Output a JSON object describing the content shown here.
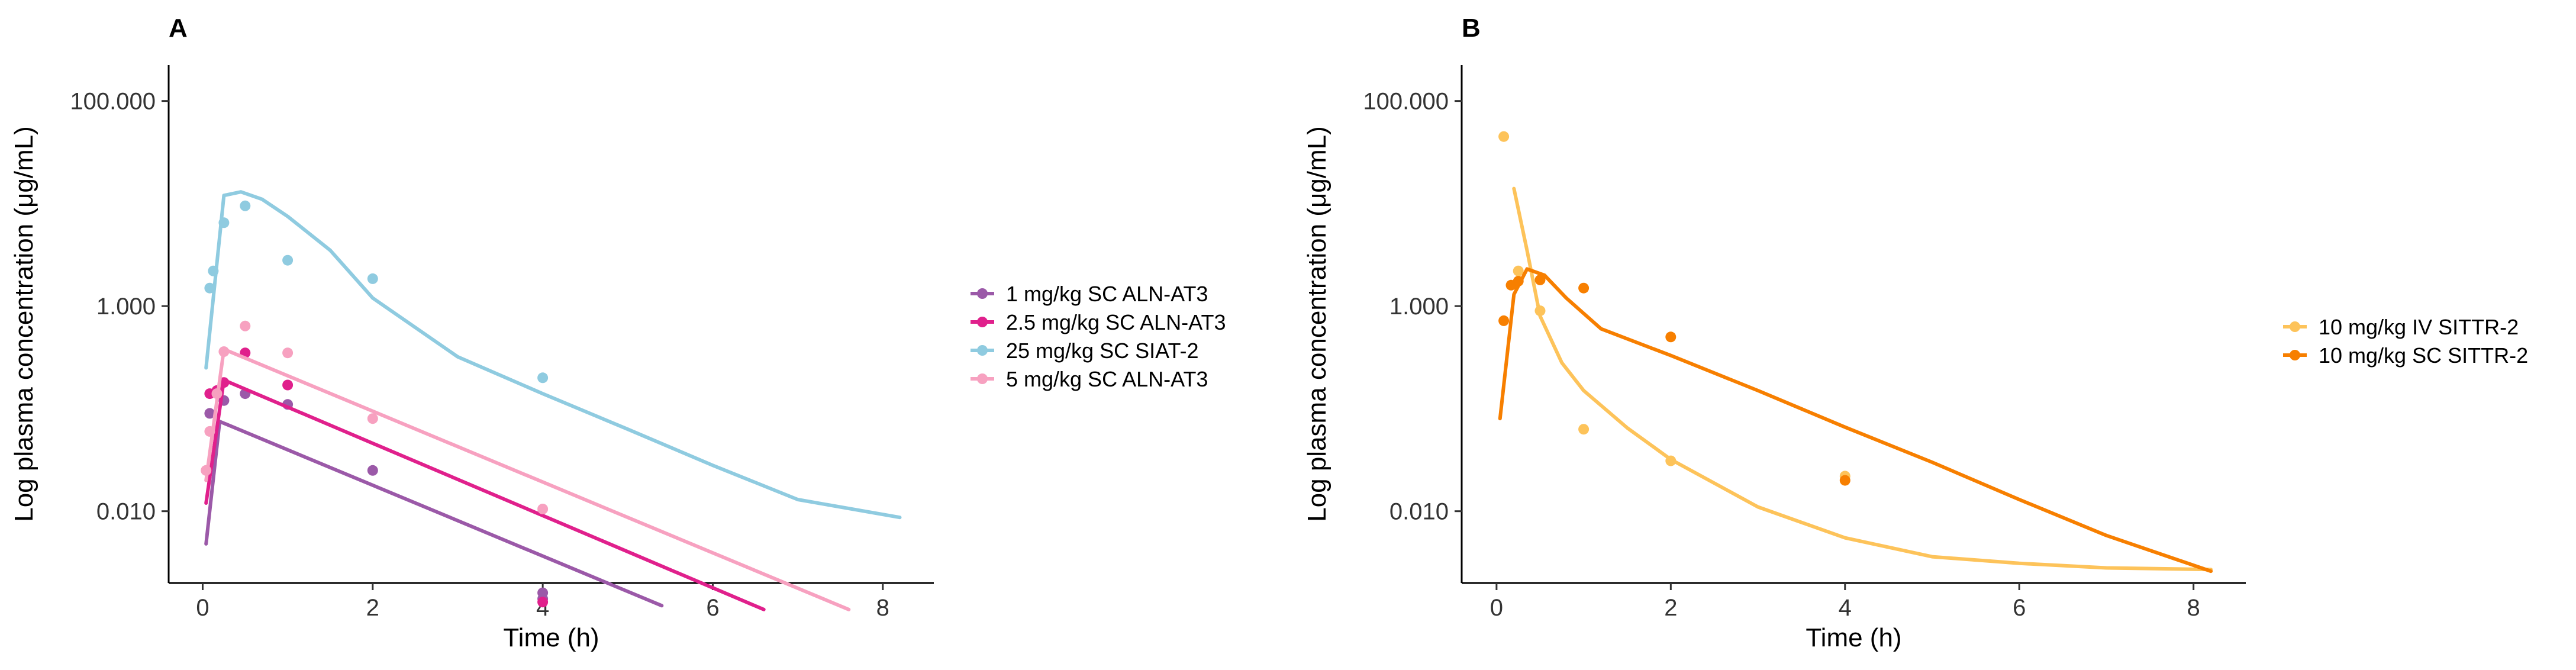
{
  "chart_data": [
    {
      "panel": "A",
      "type": "scatter",
      "xlabel": "Time (h)",
      "ylabel": "Log plasma concentration (μg/mL)",
      "xlim": [
        -0.4,
        8.6
      ],
      "ylim_log10": [
        -2.7,
        2.35
      ],
      "x_ticks": [
        0,
        2,
        4,
        6,
        8
      ],
      "y_ticks": [
        {
          "value": 0.01,
          "label": "0.010"
        },
        {
          "value": 1,
          "label": "1.000"
        },
        {
          "value": 100,
          "label": "100.000"
        }
      ],
      "grid": false,
      "legend_position": "right",
      "series": [
        {
          "name": "1 mg/kg SC ALN-AT3",
          "color": "#9b59a8",
          "points": [
            [
              0.083,
              0.09
            ],
            [
              0.25,
              0.12
            ],
            [
              0.5,
              0.14
            ],
            [
              1,
              0.11
            ],
            [
              2,
              0.025
            ],
            [
              4,
              0.0016
            ],
            [
              4,
              0.0014
            ]
          ],
          "fit": [
            [
              0.04,
              0.0048
            ],
            [
              0.2,
              0.075
            ],
            [
              5.4,
              0.0012
            ]
          ]
        },
        {
          "name": "2.5 mg/kg SC ALN-AT3",
          "color": "#e0208c",
          "points": [
            [
              0.083,
              0.14
            ],
            [
              0.167,
              0.15
            ],
            [
              0.25,
              0.18
            ],
            [
              0.5,
              0.35
            ],
            [
              1,
              0.17
            ],
            [
              4,
              0.0013
            ]
          ],
          "fit": [
            [
              0.04,
              0.012
            ],
            [
              0.25,
              0.19
            ],
            [
              6.6,
              0.0011
            ]
          ]
        },
        {
          "name": "25 mg/kg SC SIAT-2",
          "color": "#8fcbe0",
          "points": [
            [
              0.083,
              1.5
            ],
            [
              0.125,
              2.2
            ],
            [
              0.25,
              6.5
            ],
            [
              0.5,
              9.5
            ],
            [
              1,
              2.8
            ],
            [
              2,
              1.85
            ],
            [
              4,
              0.2
            ]
          ],
          "fit": [
            [
              0.04,
              0.25
            ],
            [
              0.25,
              12
            ],
            [
              0.45,
              13
            ],
            [
              0.7,
              11
            ],
            [
              1.0,
              7.5
            ],
            [
              1.5,
              3.5
            ],
            [
              2.0,
              1.2
            ],
            [
              3.0,
              0.32
            ],
            [
              4.0,
              0.14
            ],
            [
              5.0,
              0.063
            ],
            [
              6.0,
              0.028
            ],
            [
              7.0,
              0.013
            ],
            [
              8.2,
              0.0087
            ]
          ]
        },
        {
          "name": "5 mg/kg SC ALN-AT3",
          "color": "#f7a1c0",
          "points": [
            [
              0.04,
              0.025
            ],
            [
              0.083,
              0.06
            ],
            [
              0.167,
              0.14
            ],
            [
              0.25,
              0.36
            ],
            [
              0.5,
              0.64
            ],
            [
              1,
              0.35
            ],
            [
              2,
              0.08
            ],
            [
              4,
              0.0105
            ]
          ],
          "fit": [
            [
              0.04,
              0.02
            ],
            [
              0.25,
              0.38
            ],
            [
              7.6,
              0.0011
            ]
          ]
        }
      ]
    },
    {
      "panel": "B",
      "type": "scatter",
      "xlabel": "Time (h)",
      "ylabel": "Log plasma concentration (μg/mL)",
      "xlim": [
        -0.4,
        8.6
      ],
      "ylim_log10": [
        -2.7,
        2.35
      ],
      "x_ticks": [
        0,
        2,
        4,
        6,
        8
      ],
      "y_ticks": [
        {
          "value": 0.01,
          "label": "0.010"
        },
        {
          "value": 1,
          "label": "1.000"
        },
        {
          "value": 100,
          "label": "100.000"
        }
      ],
      "grid": false,
      "legend_position": "right",
      "series": [
        {
          "name": "10 mg/kg IV SITTR-2",
          "color": "#fdc35a",
          "points": [
            [
              0.083,
              45
            ],
            [
              0.25,
              2.2
            ],
            [
              0.5,
              0.9
            ],
            [
              1,
              0.063
            ],
            [
              2,
              0.031
            ],
            [
              4,
              0.022
            ]
          ],
          "fit": [
            [
              0.2,
              14
            ],
            [
              0.35,
              3.5
            ],
            [
              0.5,
              0.8
            ],
            [
              0.75,
              0.28
            ],
            [
              1.0,
              0.15
            ],
            [
              1.5,
              0.065
            ],
            [
              2.0,
              0.032
            ],
            [
              3.0,
              0.011
            ],
            [
              4.0,
              0.0055
            ],
            [
              5.0,
              0.0036
            ],
            [
              6.0,
              0.0031
            ],
            [
              7.0,
              0.0028
            ],
            [
              8.2,
              0.0027
            ]
          ]
        },
        {
          "name": "10 mg/kg SC SITTR-2",
          "color": "#f77f00",
          "points": [
            [
              0.083,
              0.72
            ],
            [
              0.167,
              1.6
            ],
            [
              0.25,
              1.75
            ],
            [
              0.5,
              1.8
            ],
            [
              1,
              1.5
            ],
            [
              2,
              0.5
            ],
            [
              4,
              0.02
            ]
          ],
          "fit": [
            [
              0.04,
              0.08
            ],
            [
              0.2,
              1.3
            ],
            [
              0.35,
              2.3
            ],
            [
              0.55,
              2.0
            ],
            [
              0.8,
              1.2
            ],
            [
              1.2,
              0.6
            ],
            [
              2.0,
              0.33
            ],
            [
              3.0,
              0.15
            ],
            [
              4.0,
              0.066
            ],
            [
              5.0,
              0.03
            ],
            [
              6.0,
              0.013
            ],
            [
              7.0,
              0.0058
            ],
            [
              8.2,
              0.0026
            ]
          ]
        }
      ]
    }
  ]
}
